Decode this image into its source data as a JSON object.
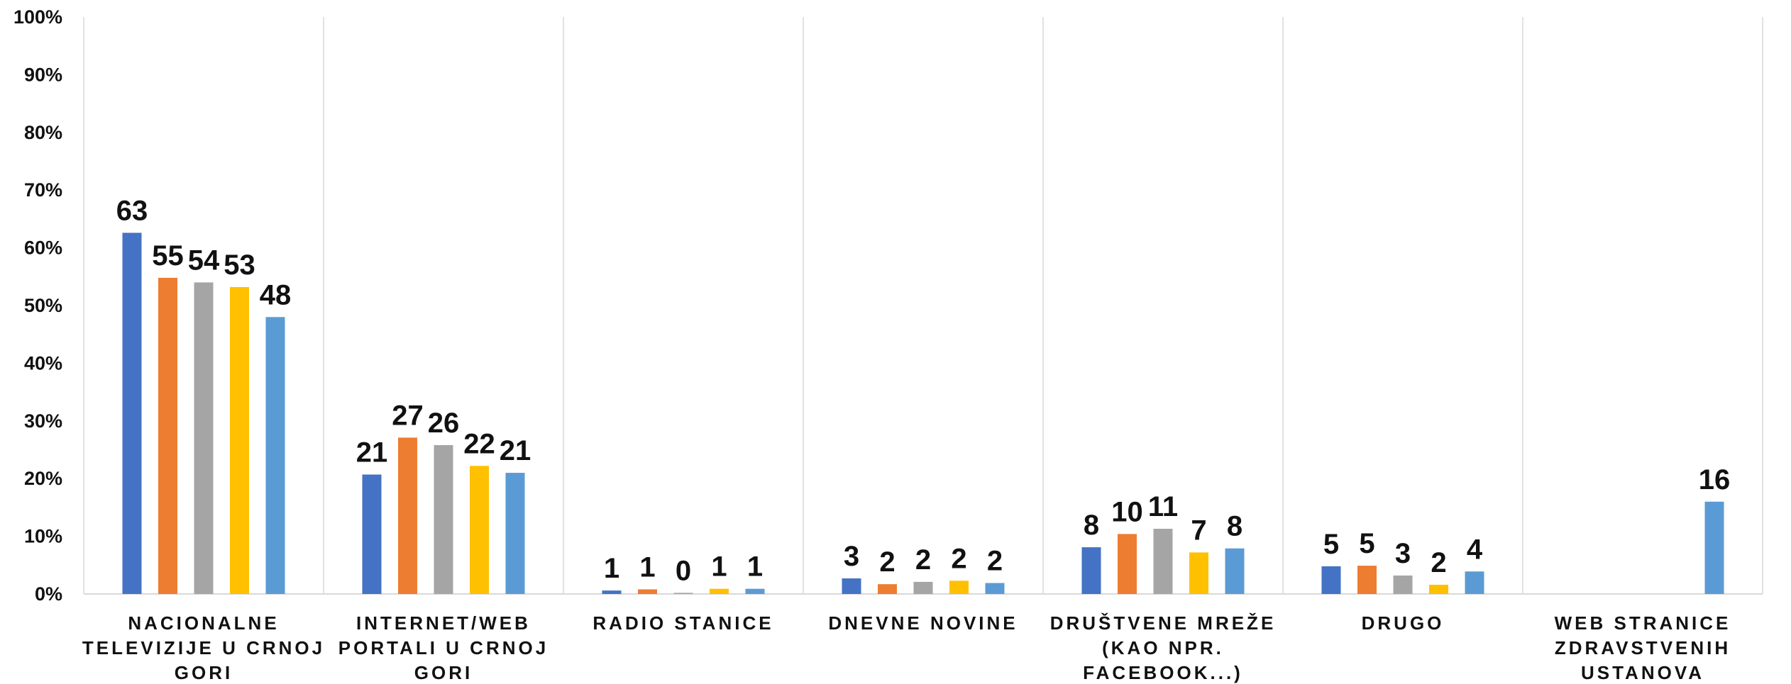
{
  "chart_data": {
    "type": "bar",
    "categories": [
      [
        "NACIONALNE",
        "TELEVIZIJE U CRNOJ",
        "GORI"
      ],
      [
        "INTERNET/WEB",
        "PORTALI U CRNOJ",
        "GORI"
      ],
      [
        "RADIO STANICE"
      ],
      [
        "DNEVNE NOVINE"
      ],
      [
        "DRUŠTVENE MREŽE",
        "(KAO NPR.",
        "FACEBOOK...)"
      ],
      [
        "DRUGO"
      ],
      [
        "WEB STRANICE",
        "ZDRAVSTVENIH",
        "USTANOVA"
      ]
    ],
    "series": [
      {
        "values": [
          62.6,
          20.7,
          0.6,
          2.7,
          8.1,
          4.8,
          null
        ],
        "labels": [
          "63",
          "21",
          "1",
          "3",
          "8",
          "5",
          null
        ],
        "color": "#4472C4"
      },
      {
        "values": [
          54.8,
          27.1,
          0.8,
          1.7,
          10.4,
          4.9,
          null
        ],
        "labels": [
          "55",
          "27",
          "1",
          "2",
          "10",
          "5",
          null
        ],
        "color": "#ED7D31"
      },
      {
        "values": [
          54.0,
          25.8,
          0.2,
          2.1,
          11.3,
          3.2,
          null
        ],
        "labels": [
          "54",
          "26",
          "0",
          "2",
          "11",
          "3",
          null
        ],
        "color": "#A5A5A5"
      },
      {
        "values": [
          53.2,
          22.2,
          0.9,
          2.3,
          7.2,
          1.6,
          null
        ],
        "labels": [
          "53",
          "22",
          "1",
          "2",
          "7",
          "2",
          null
        ],
        "color": "#FFC000"
      },
      {
        "values": [
          48.0,
          21.0,
          0.9,
          1.9,
          7.9,
          3.9,
          16.0
        ],
        "labels": [
          "48",
          "21",
          "1",
          "2",
          "8",
          "4",
          "16"
        ],
        "color": "#5B9BD5"
      }
    ],
    "yticks": [
      "0%",
      "10%",
      "20%",
      "30%",
      "40%",
      "50%",
      "60%",
      "70%",
      "80%",
      "90%",
      "100%"
    ],
    "ylim": [
      0,
      100
    ],
    "grid": "vertical category separators",
    "legend": "none"
  }
}
